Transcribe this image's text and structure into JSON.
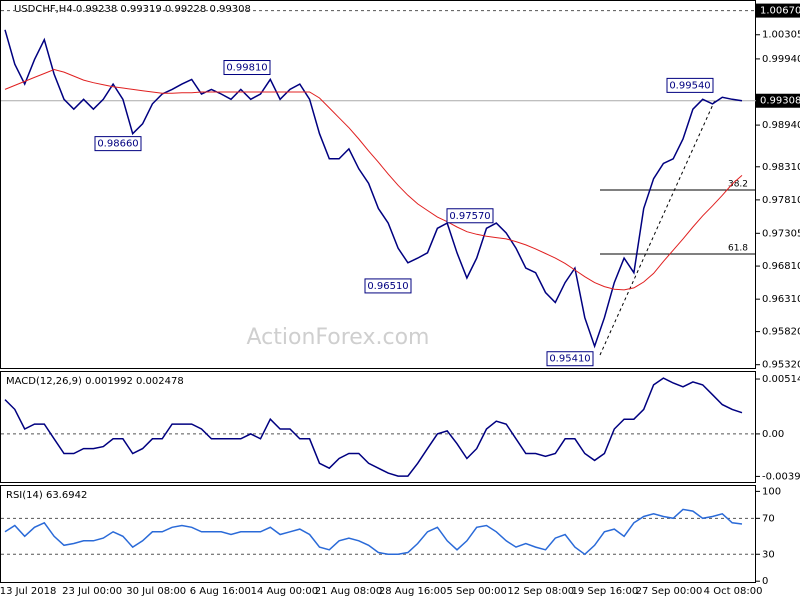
{
  "chart_data": [
    {
      "type": "line",
      "title": "USDCHF,H4 0.99238 0.99319 0.99228 0.99308",
      "ylim": [
        0.9527,
        1.0083
      ],
      "yticks": [
        {
          "value": 1.00305,
          "label": "1.00305"
        },
        {
          "value": 0.9994,
          "label": "0.99940"
        },
        {
          "value": 0.9894,
          "label": "0.98940"
        },
        {
          "value": 0.9831,
          "label": "0.98310"
        },
        {
          "value": 0.9781,
          "label": "0.97810"
        },
        {
          "value": 0.97305,
          "label": "0.97305"
        },
        {
          "value": 0.9681,
          "label": "0.96810"
        },
        {
          "value": 0.9631,
          "label": "0.96310"
        },
        {
          "value": 0.9582,
          "label": "0.95820"
        },
        {
          "value": 0.9532,
          "label": "0.95320"
        }
      ],
      "high_line": {
        "value": 1.0067,
        "label": "1.00670"
      },
      "last_price": 0.99308,
      "series": [
        {
          "color": "#000080",
          "values": [
            1.0038,
            0.9986,
            0.9956,
            0.9993,
            1.0023,
            0.9971,
            0.9933,
            0.9918,
            0.9933,
            0.9918,
            0.9933,
            0.9956,
            0.9933,
            0.9881,
            0.9896,
            0.9926,
            0.9941,
            0.9948,
            0.9956,
            0.9963,
            0.9941,
            0.9948,
            0.9941,
            0.9933,
            0.9948,
            0.9933,
            0.9941,
            0.9963,
            0.9933,
            0.9948,
            0.9956,
            0.9933,
            0.9881,
            0.9843,
            0.9843,
            0.9858,
            0.9828,
            0.9806,
            0.9768,
            0.9746,
            0.9708,
            0.9686,
            0.9693,
            0.9701,
            0.9738,
            0.9746,
            0.9701,
            0.9663,
            0.9693,
            0.9738,
            0.9746,
            0.9731,
            0.9708,
            0.9678,
            0.9671,
            0.9641,
            0.9626,
            0.9656,
            0.9678,
            0.9603,
            0.956,
            0.9603,
            0.9656,
            0.9693,
            0.9671,
            0.9768,
            0.9813,
            0.9836,
            0.9843,
            0.9873,
            0.9918,
            0.9933,
            0.9926,
            0.9936,
            0.9933,
            0.99308
          ]
        },
        {
          "color": "#e02020",
          "values": [
            0.9948,
            0.9954,
            0.996,
            0.9966,
            0.9972,
            0.9978,
            0.9974,
            0.9968,
            0.9962,
            0.9958,
            0.9955,
            0.9952,
            0.995,
            0.9948,
            0.9946,
            0.9944,
            0.9942,
            0.9942,
            0.9943,
            0.9943,
            0.9944,
            0.9944,
            0.9944,
            0.9944,
            0.9944,
            0.9944,
            0.9944,
            0.9944,
            0.9944,
            0.9944,
            0.9944,
            0.9944,
            0.9935,
            0.992,
            0.9905,
            0.989,
            0.9873,
            0.9855,
            0.9838,
            0.982,
            0.9803,
            0.9788,
            0.9775,
            0.9765,
            0.9755,
            0.9748,
            0.974,
            0.9733,
            0.9729,
            0.9726,
            0.9724,
            0.9722,
            0.9718,
            0.9713,
            0.9707,
            0.97,
            0.9693,
            0.9685,
            0.9675,
            0.9665,
            0.9656,
            0.965,
            0.9646,
            0.9645,
            0.9648,
            0.9657,
            0.967,
            0.9688,
            0.9705,
            0.9722,
            0.974,
            0.9757,
            0.9772,
            0.9788,
            0.9805,
            0.9818
          ]
        }
      ],
      "annotations": [
        {
          "text": "0.99810",
          "value": 0.9981
        },
        {
          "text": "0.98660",
          "value": 0.9866
        },
        {
          "text": "0.97570",
          "value": 0.9757
        },
        {
          "text": "0.96510",
          "value": 0.9651
        },
        {
          "text": "0.95410",
          "value": 0.9541
        },
        {
          "text": "0.99540",
          "value": 0.9954
        }
      ],
      "fib_levels": [
        {
          "level": 38.2,
          "price": 0.97959
        },
        {
          "level": 61.8,
          "price": 0.96992
        }
      ],
      "watermark": "ActionForex.com",
      "x_labels": [
        "13 Jul 2018",
        "23 Jul 00:00",
        "30 Jul 08:00",
        "6 Aug 16:00",
        "14 Aug 00:00",
        "21 Aug 08:00",
        "28 Aug 16:00",
        "5 Sep 00:00",
        "12 Sep 08:00",
        "19 Sep 16:00",
        "27 Sep 00:00",
        "4 Oct 08:00"
      ]
    },
    {
      "type": "line",
      "title": "MACD(12,26,9) 0.001992 0.002478",
      "ylim": [
        -0.0046,
        0.0058
      ],
      "yticks": [
        0.005141,
        {
          "value": 0,
          "label": "0.00"
        },
        -0.003982
      ],
      "series": [
        {
          "color": "#000080",
          "values": [
            0.00321,
            0.0023,
            0.00046,
            0.00092,
            0.00092,
            -0.00046,
            -0.00184,
            -0.00184,
            -0.00138,
            -0.00138,
            -0.00119,
            -0.00046,
            -0.00046,
            -0.00184,
            -0.00138,
            -0.00046,
            -0.00046,
            0.00092,
            0.00092,
            0.00092,
            0.00046,
            -0.00046,
            -0.00046,
            -0.00046,
            -0.00046,
            0,
            -0.00046,
            0.00138,
            0.00046,
            0.00046,
            -0.00046,
            -0.00046,
            -0.00275,
            -0.00321,
            -0.0023,
            -0.00184,
            -0.00184,
            -0.00275,
            -0.00321,
            -0.00367,
            -0.00395,
            -0.00395,
            -0.00275,
            -0.00138,
            0,
            0.00028,
            -0.00092,
            -0.0023,
            -0.00138,
            0.00046,
            0.00119,
            0.00092,
            -0.00046,
            -0.00184,
            -0.00184,
            -0.00211,
            -0.00184,
            -0.00046,
            -0.00046,
            -0.00184,
            -0.00248,
            -0.00184,
            0.00046,
            0.00138,
            0.00138,
            0.0023,
            0.00459,
            0.00523,
            0.00477,
            0.00441,
            0.00487,
            0.00459,
            0.00367,
            0.00275,
            0.0023,
            0.00199
          ]
        }
      ],
      "dashed_levels": [
        0
      ]
    },
    {
      "type": "line",
      "title": "RSI(14) 63.6942",
      "ylim": [
        -2,
        106
      ],
      "yticks": [
        100,
        70,
        30,
        0
      ],
      "series": [
        {
          "color": "#2a6ad8",
          "values": [
            55,
            62,
            50,
            60,
            65,
            50,
            40,
            42,
            45,
            45,
            48,
            55,
            50,
            38,
            45,
            55,
            55,
            60,
            62,
            60,
            55,
            55,
            55,
            52,
            55,
            55,
            55,
            60,
            52,
            55,
            58,
            52,
            38,
            35,
            45,
            48,
            45,
            40,
            32,
            30,
            30,
            32,
            42,
            55,
            60,
            45,
            35,
            45,
            60,
            62,
            55,
            45,
            38,
            42,
            38,
            35,
            48,
            52,
            38,
            30,
            40,
            55,
            58,
            50,
            65,
            72,
            75,
            72,
            70,
            80,
            78,
            70,
            72,
            75,
            65,
            63.69
          ]
        }
      ],
      "dashed_levels": [
        70,
        30
      ]
    }
  ]
}
